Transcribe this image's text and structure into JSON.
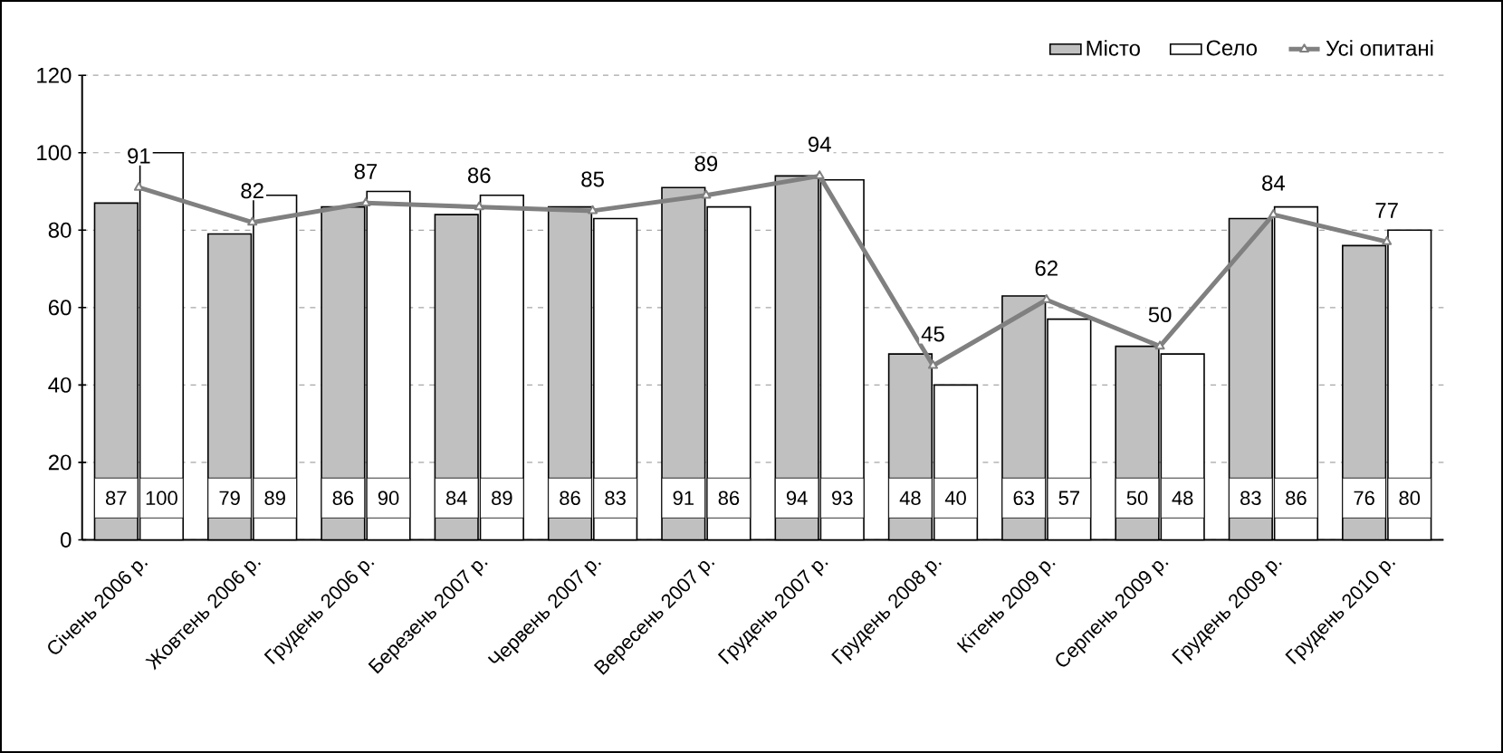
{
  "chart_data": {
    "type": "bar",
    "categories": [
      "Січень 2006 р.",
      "Жовтень 2006 р.",
      "Грудень 2006 р.",
      "Березень 2007 р.",
      "Червень 2007 р.",
      "Вересень 2007 р.",
      "Грудень 2007 р.",
      "Грудень 2008 р.",
      "Кітень 2009 р.",
      "Серпень 2009 р.",
      "Грудень 2009 р.",
      "Грудень 2010 р."
    ],
    "series": [
      {
        "name": "Місто",
        "color": "#c0c0c0",
        "values": [
          87,
          79,
          86,
          84,
          86,
          91,
          94,
          48,
          63,
          50,
          83,
          76
        ]
      },
      {
        "name": "Село",
        "color": "#ffffff",
        "values": [
          100,
          89,
          90,
          89,
          83,
          86,
          93,
          40,
          57,
          48,
          86,
          80
        ]
      },
      {
        "name": "Усі опитані",
        "type": "line",
        "color": "#808080",
        "marker": "triangle",
        "values": [
          91,
          82,
          87,
          86,
          85,
          89,
          94,
          45,
          62,
          50,
          84,
          77
        ]
      }
    ],
    "ylim": [
      0,
      120
    ],
    "yticks": [
      0,
      20,
      40,
      60,
      80,
      100,
      120
    ],
    "grid": "y",
    "legend": "top right",
    "data_labels": true
  }
}
